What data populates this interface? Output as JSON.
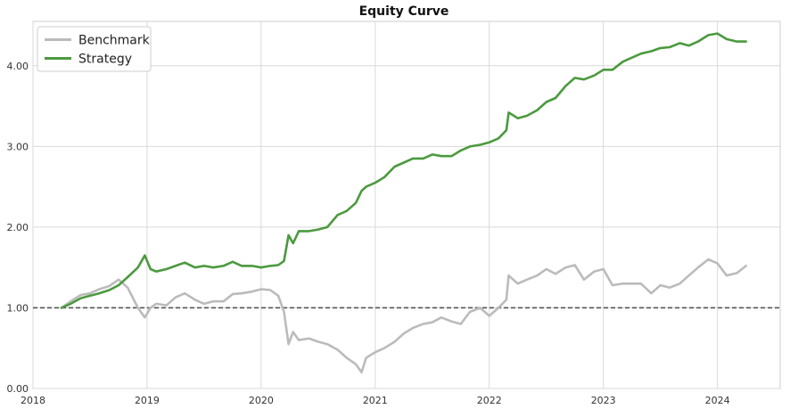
{
  "chart_data": {
    "type": "line",
    "title": "Equity Curve",
    "xlabel": "",
    "ylabel": "",
    "xlim": [
      2018.0,
      2024.55
    ],
    "ylim": [
      0.0,
      4.55
    ],
    "grid": true,
    "legend_position": "top-left",
    "x_ticks": [
      2018,
      2019,
      2020,
      2021,
      2022,
      2023,
      2024
    ],
    "x_tick_labels": [
      "2018",
      "2019",
      "2020",
      "2021",
      "2022",
      "2023",
      "2024"
    ],
    "y_ticks": [
      0,
      1,
      2,
      3,
      4
    ],
    "y_tick_labels": [
      "0.00",
      "1.00",
      "2.00",
      "3.00",
      "4.00"
    ],
    "reference_line": {
      "y": 1.0,
      "style": "dashed",
      "color": "#555555"
    },
    "series": [
      {
        "name": "Benchmark",
        "color": "#bbbbbb",
        "x": [
          2018.25,
          2018.33,
          2018.42,
          2018.5,
          2018.58,
          2018.67,
          2018.75,
          2018.83,
          2018.92,
          2018.98,
          2019.03,
          2019.08,
          2019.17,
          2019.25,
          2019.33,
          2019.42,
          2019.5,
          2019.58,
          2019.67,
          2019.75,
          2019.83,
          2019.92,
          2020.0,
          2020.08,
          2020.15,
          2020.2,
          2020.24,
          2020.28,
          2020.33,
          2020.42,
          2020.5,
          2020.58,
          2020.67,
          2020.75,
          2020.83,
          2020.88,
          2020.92,
          2021.0,
          2021.08,
          2021.17,
          2021.25,
          2021.33,
          2021.42,
          2021.5,
          2021.58,
          2021.67,
          2021.75,
          2021.83,
          2021.92,
          2022.0,
          2022.08,
          2022.15,
          2022.17,
          2022.25,
          2022.33,
          2022.42,
          2022.5,
          2022.58,
          2022.67,
          2022.75,
          2022.83,
          2022.92,
          2023.0,
          2023.08,
          2023.17,
          2023.25,
          2023.33,
          2023.42,
          2023.5,
          2023.58,
          2023.67,
          2023.75,
          2023.83,
          2023.92,
          2024.0,
          2024.08,
          2024.17,
          2024.25
        ],
        "values": [
          1.0,
          1.08,
          1.16,
          1.18,
          1.23,
          1.27,
          1.35,
          1.25,
          1.0,
          0.88,
          1.0,
          1.05,
          1.03,
          1.13,
          1.18,
          1.1,
          1.05,
          1.08,
          1.08,
          1.17,
          1.18,
          1.2,
          1.23,
          1.22,
          1.15,
          0.95,
          0.55,
          0.7,
          0.6,
          0.62,
          0.58,
          0.55,
          0.48,
          0.38,
          0.3,
          0.2,
          0.38,
          0.45,
          0.5,
          0.58,
          0.68,
          0.75,
          0.8,
          0.82,
          0.88,
          0.83,
          0.8,
          0.95,
          1.0,
          0.9,
          1.0,
          1.1,
          1.4,
          1.3,
          1.35,
          1.4,
          1.48,
          1.42,
          1.5,
          1.53,
          1.35,
          1.45,
          1.48,
          1.28,
          1.3,
          1.3,
          1.3,
          1.18,
          1.28,
          1.25,
          1.3,
          1.4,
          1.5,
          1.6,
          1.55,
          1.4,
          1.43,
          1.52
        ]
      },
      {
        "name": "Strategy",
        "color": "#4b9a3e",
        "x": [
          2018.25,
          2018.33,
          2018.42,
          2018.5,
          2018.58,
          2018.67,
          2018.75,
          2018.83,
          2018.92,
          2018.98,
          2019.03,
          2019.08,
          2019.17,
          2019.25,
          2019.33,
          2019.42,
          2019.5,
          2019.58,
          2019.67,
          2019.75,
          2019.83,
          2019.92,
          2020.0,
          2020.08,
          2020.15,
          2020.2,
          2020.24,
          2020.28,
          2020.33,
          2020.42,
          2020.5,
          2020.58,
          2020.67,
          2020.75,
          2020.83,
          2020.88,
          2020.92,
          2021.0,
          2021.08,
          2021.17,
          2021.25,
          2021.33,
          2021.42,
          2021.5,
          2021.58,
          2021.67,
          2021.75,
          2021.83,
          2021.92,
          2022.0,
          2022.08,
          2022.15,
          2022.17,
          2022.25,
          2022.33,
          2022.42,
          2022.5,
          2022.58,
          2022.67,
          2022.75,
          2022.83,
          2022.92,
          2023.0,
          2023.08,
          2023.17,
          2023.25,
          2023.33,
          2023.42,
          2023.5,
          2023.58,
          2023.67,
          2023.75,
          2023.83,
          2023.92,
          2024.0,
          2024.08,
          2024.17,
          2024.25
        ],
        "values": [
          1.0,
          1.05,
          1.12,
          1.15,
          1.18,
          1.22,
          1.28,
          1.38,
          1.5,
          1.65,
          1.48,
          1.45,
          1.48,
          1.52,
          1.56,
          1.5,
          1.52,
          1.5,
          1.52,
          1.57,
          1.52,
          1.52,
          1.5,
          1.52,
          1.53,
          1.58,
          1.9,
          1.8,
          1.95,
          1.95,
          1.97,
          2.0,
          2.15,
          2.2,
          2.3,
          2.45,
          2.5,
          2.55,
          2.62,
          2.75,
          2.8,
          2.85,
          2.85,
          2.9,
          2.88,
          2.88,
          2.95,
          3.0,
          3.02,
          3.05,
          3.1,
          3.2,
          3.42,
          3.35,
          3.38,
          3.45,
          3.55,
          3.6,
          3.75,
          3.85,
          3.83,
          3.88,
          3.95,
          3.95,
          4.05,
          4.1,
          4.15,
          4.18,
          4.22,
          4.23,
          4.28,
          4.25,
          4.3,
          4.38,
          4.4,
          4.33,
          4.3,
          4.3
        ]
      }
    ]
  }
}
